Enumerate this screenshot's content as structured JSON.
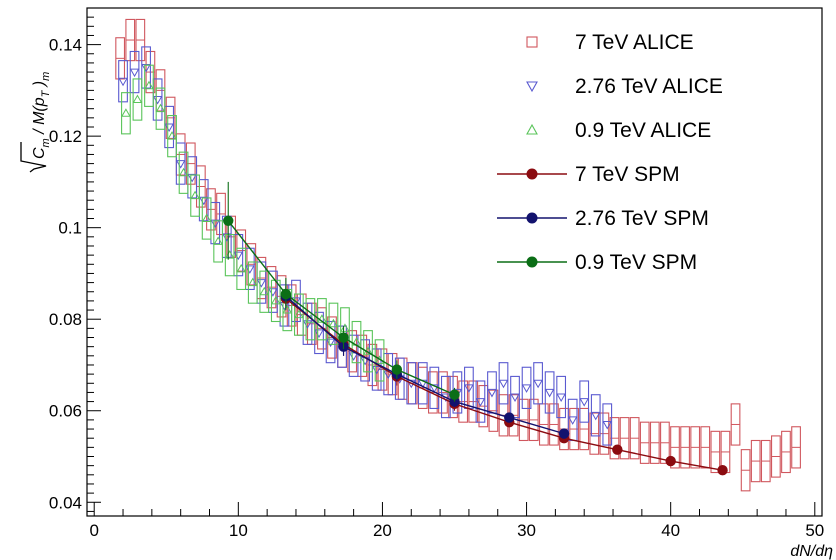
{
  "chart_data": {
    "type": "scatter",
    "title": "",
    "xlabel": "dN/dη",
    "ylabel_parts": {
      "c": "C",
      "m1": "m",
      "mid": " / M(p",
      "t": "T",
      "close": " )",
      "m2": "m"
    },
    "xlim": [
      -0.5,
      50.5
    ],
    "ylim": [
      0.037,
      0.148
    ],
    "x_ticks": [
      0,
      10,
      20,
      30,
      40,
      50
    ],
    "x_tick_labels": [
      "0",
      "10",
      "20",
      "30",
      "40",
      "50"
    ],
    "y_ticks": [
      0.04,
      0.06,
      0.08,
      0.1,
      0.12,
      0.14
    ],
    "y_tick_labels": [
      "0.04",
      "0.06",
      "0.08",
      "0.1",
      "0.12",
      "0.14"
    ],
    "grid": false,
    "legend_position": "top-right",
    "box_series": [
      {
        "name": "7 TeV ALICE",
        "color": "#d0575e",
        "marker": "square",
        "x": [
          1.8,
          2.5,
          3.2,
          3.9,
          4.6,
          5.3,
          6.0,
          6.7,
          7.4,
          8.1,
          8.8,
          9.5,
          10.2,
          10.9,
          11.6,
          12.3,
          13.0,
          13.7,
          14.4,
          15.1,
          15.8,
          16.5,
          17.2,
          17.9,
          18.6,
          19.3,
          20.0,
          20.7,
          21.4,
          22.1,
          22.8,
          23.5,
          24.2,
          24.9,
          25.6,
          26.3,
          27.0,
          27.7,
          28.4,
          29.1,
          29.8,
          30.5,
          31.2,
          31.9,
          32.6,
          33.3,
          34.0,
          34.7,
          35.4,
          36.1,
          36.8,
          37.5,
          38.2,
          38.9,
          39.6,
          40.3,
          41.0,
          41.7,
          42.4,
          43.1,
          43.8,
          44.5,
          45.2,
          45.9,
          46.6,
          47.3,
          48.0,
          48.7
        ],
        "y": [
          0.137,
          0.141,
          0.141,
          0.134,
          0.13,
          0.124,
          0.116,
          0.114,
          0.109,
          0.104,
          0.103,
          0.098,
          0.095,
          0.092,
          0.089,
          0.087,
          0.085,
          0.083,
          0.081,
          0.079,
          0.078,
          0.076,
          0.074,
          0.073,
          0.072,
          0.07,
          0.069,
          0.068,
          0.067,
          0.066,
          0.065,
          0.064,
          0.064,
          0.063,
          0.062,
          0.062,
          0.061,
          0.06,
          0.059,
          0.059,
          0.058,
          0.058,
          0.057,
          0.057,
          0.056,
          0.056,
          0.056,
          0.055,
          0.055,
          0.054,
          0.054,
          0.054,
          0.053,
          0.053,
          0.053,
          0.052,
          0.052,
          0.052,
          0.052,
          0.051,
          0.051,
          0.057,
          0.047,
          0.049,
          0.049,
          0.05,
          0.051,
          0.052
        ],
        "box_half_height": 0.0045
      },
      {
        "name": "2.76 TeV ALICE",
        "color": "#5a5ad0",
        "marker": "triangle-down",
        "x": [
          2.0,
          2.8,
          3.6,
          4.4,
          5.2,
          6.0,
          6.8,
          7.6,
          8.4,
          9.2,
          10.0,
          10.8,
          11.6,
          12.4,
          13.2,
          14.0,
          14.8,
          15.6,
          16.4,
          17.2,
          18.0,
          18.8,
          19.6,
          20.4,
          21.2,
          22.0,
          22.8,
          23.6,
          24.4,
          25.2,
          26.0,
          26.8,
          27.6,
          28.4,
          29.2,
          30.0,
          30.8,
          31.6,
          32.4,
          33.2,
          34.0,
          34.8,
          35.6
        ],
        "y": [
          0.132,
          0.134,
          0.135,
          0.128,
          0.122,
          0.114,
          0.111,
          0.106,
          0.101,
          0.098,
          0.094,
          0.091,
          0.088,
          0.086,
          0.083,
          0.084,
          0.079,
          0.077,
          0.075,
          0.074,
          0.072,
          0.071,
          0.069,
          0.068,
          0.067,
          0.066,
          0.066,
          0.065,
          0.063,
          0.064,
          0.065,
          0.062,
          0.064,
          0.066,
          0.063,
          0.065,
          0.066,
          0.064,
          0.063,
          0.058,
          0.062,
          0.059,
          0.057
        ],
        "box_half_height": 0.0045
      },
      {
        "name": "0.9 TeV ALICE",
        "color": "#5ac45a",
        "marker": "triangle-up",
        "x": [
          2.2,
          3.0,
          3.8,
          4.6,
          5.4,
          6.2,
          7.0,
          7.8,
          8.6,
          9.4,
          10.2,
          11.0,
          11.8,
          12.6,
          13.4,
          14.2,
          15.0,
          15.8,
          16.6,
          17.4,
          18.2,
          19.0,
          19.8
        ],
        "y": [
          0.125,
          0.128,
          0.131,
          0.126,
          0.12,
          0.112,
          0.107,
          0.102,
          0.097,
          0.094,
          0.091,
          0.088,
          0.086,
          0.084,
          0.082,
          0.081,
          0.08,
          0.08,
          0.079,
          0.078,
          0.075,
          0.073,
          0.071
        ],
        "box_half_height": 0.0045
      }
    ],
    "line_series": [
      {
        "name": "7 TeV SPM",
        "color": "#8b0b10",
        "x": [
          13.3,
          17.3,
          21.0,
          25.0,
          28.8,
          32.6,
          36.3,
          40.0,
          43.6
        ],
        "y": [
          0.0845,
          0.0745,
          0.0675,
          0.0615,
          0.0575,
          0.054,
          0.0515,
          0.049,
          0.047
        ],
        "yerr": [
          0.0022,
          0.0025,
          0.002,
          0.0015,
          0.001,
          0.001,
          0.0008,
          0.0008,
          0.0008
        ]
      },
      {
        "name": "2.76 TeV SPM",
        "color": "#12126e",
        "x": [
          13.3,
          17.3,
          21.0,
          25.0,
          28.8,
          32.6
        ],
        "y": [
          0.085,
          0.074,
          0.068,
          0.062,
          0.0585,
          0.055
        ],
        "yerr": [
          0.0022,
          0.002,
          0.0015,
          0.0012,
          0.001,
          0.001
        ]
      },
      {
        "name": "0.9 TeV SPM",
        "color": "#0b6e16",
        "x": [
          9.3,
          13.3,
          17.3,
          21.0,
          25.0
        ],
        "y": [
          0.1015,
          0.0855,
          0.076,
          0.069,
          0.0635
        ],
        "yerr": [
          0.0085,
          0.0035,
          0.0025,
          0.002,
          0.0015
        ]
      }
    ]
  }
}
